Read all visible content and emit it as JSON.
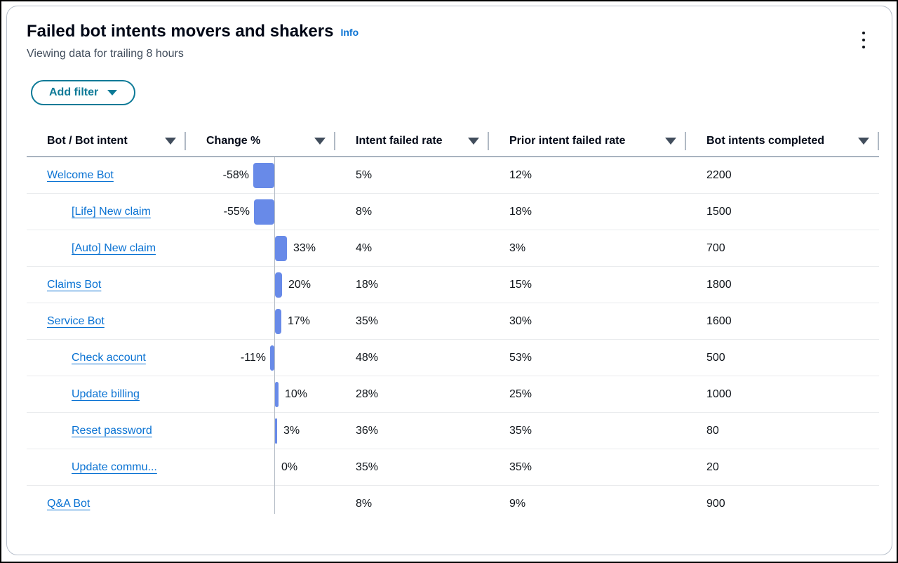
{
  "panel": {
    "title": "Failed bot intents movers and shakers",
    "info_label": "Info",
    "subtitle": "Viewing data for trailing 8 hours",
    "menu_icon": "kebab-menu-icon"
  },
  "filter": {
    "add_filter_label": "Add filter",
    "caret_icon": "caret-down-filled-icon"
  },
  "table": {
    "columns": [
      {
        "label": "Bot / Bot intent",
        "sort_icon": "caret-down-filled-icon"
      },
      {
        "label": "Change %",
        "sort_icon": "caret-down-filled-icon"
      },
      {
        "label": "Intent failed rate",
        "sort_icon": "caret-down-filled-icon"
      },
      {
        "label": "Prior intent failed rate",
        "sort_icon": "caret-down-filled-icon"
      },
      {
        "label": "Bot intents completed",
        "sort_icon": "caret-down-filled-icon"
      }
    ],
    "rows": [
      {
        "name": "Welcome Bot",
        "depth": 0,
        "change": -58,
        "change_label": "-58%",
        "intent_failed_rate": "5%",
        "prior_intent_failed_rate": "12%",
        "bot_intents_completed": "2200"
      },
      {
        "name": "[Life] New claim",
        "depth": 1,
        "change": -55,
        "change_label": "-55%",
        "intent_failed_rate": "8%",
        "prior_intent_failed_rate": "18%",
        "bot_intents_completed": "1500"
      },
      {
        "name": "[Auto] New claim",
        "depth": 1,
        "change": 33,
        "change_label": "33%",
        "intent_failed_rate": "4%",
        "prior_intent_failed_rate": "3%",
        "bot_intents_completed": "700"
      },
      {
        "name": "Claims Bot",
        "depth": 0,
        "change": 20,
        "change_label": "20%",
        "intent_failed_rate": "18%",
        "prior_intent_failed_rate": "15%",
        "bot_intents_completed": "1800"
      },
      {
        "name": "Service Bot",
        "depth": 0,
        "change": 17,
        "change_label": "17%",
        "intent_failed_rate": "35%",
        "prior_intent_failed_rate": "30%",
        "bot_intents_completed": "1600"
      },
      {
        "name": "Check account",
        "depth": 1,
        "change": -11,
        "change_label": "-11%",
        "intent_failed_rate": "48%",
        "prior_intent_failed_rate": "53%",
        "bot_intents_completed": "500"
      },
      {
        "name": "Update billing",
        "depth": 1,
        "change": 10,
        "change_label": "10%",
        "intent_failed_rate": "28%",
        "prior_intent_failed_rate": "25%",
        "bot_intents_completed": "1000"
      },
      {
        "name": "Reset password",
        "depth": 1,
        "change": 3,
        "change_label": "3%",
        "intent_failed_rate": "36%",
        "prior_intent_failed_rate": "35%",
        "bot_intents_completed": "80"
      },
      {
        "name": "Update commu...",
        "depth": 1,
        "change": 0,
        "change_label": "0%",
        "intent_failed_rate": "35%",
        "prior_intent_failed_rate": "35%",
        "bot_intents_completed": "20"
      },
      {
        "name": "Q&A Bot",
        "depth": 0,
        "change": null,
        "change_label": "",
        "intent_failed_rate": "8%",
        "prior_intent_failed_rate": "9%",
        "bot_intents_completed": "900"
      }
    ]
  },
  "colors": {
    "bar": "#688ae8",
    "link": "#0972d3",
    "button_accent": "#0d7a97",
    "subtitle_text": "#414d5c"
  }
}
